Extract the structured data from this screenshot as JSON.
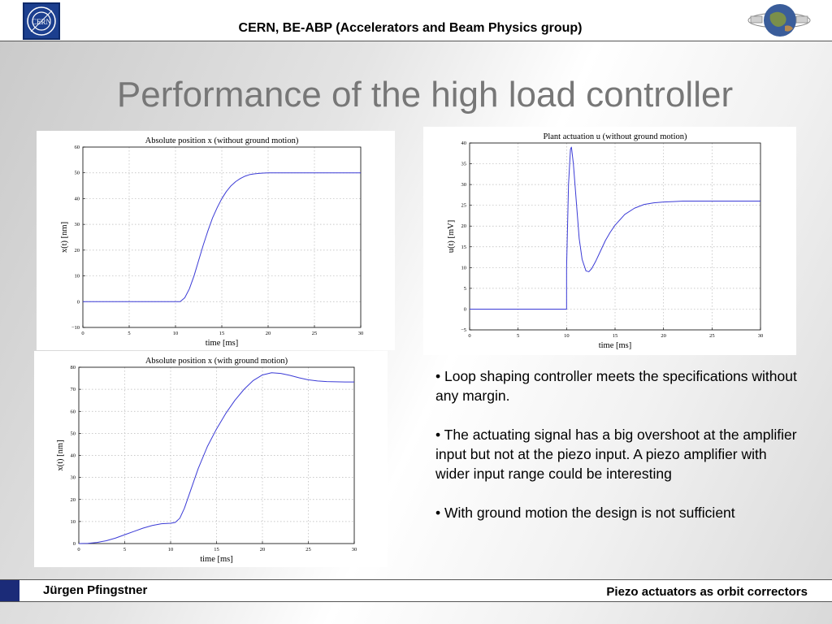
{
  "header": {
    "title": "CERN, BE-ABP (Accelerators and Beam Physics group)",
    "cern_logo_text": "CERN"
  },
  "slide": {
    "title": "Performance of the high load controller"
  },
  "bullets": [
    "• Loop shaping controller meets the specifications without any margin.",
    "• The actuating signal has a big overshoot at the amplifier input but not at the piezo input. A piezo amplifier with wider input range could be interesting",
    "• With ground motion the design is not sufficient"
  ],
  "footer": {
    "author": "Jürgen Pfingstner",
    "topic": "Piezo actuators as orbit correctors"
  },
  "chart_data": [
    {
      "type": "line",
      "title": "Absolute position x (without ground motion)",
      "xlabel": "time [ms]",
      "ylabel": "x(t) [nm]",
      "xlim": [
        0,
        30
      ],
      "ylim": [
        -10,
        60
      ],
      "xticks": [
        0,
        5,
        10,
        15,
        20,
        25,
        30
      ],
      "yticks": [
        -10,
        0,
        10,
        20,
        30,
        40,
        50,
        60
      ],
      "grid": true,
      "series": [
        {
          "color": "#3b3bd6",
          "x": [
            0,
            10.5,
            11.0,
            11.5,
            12.0,
            12.5,
            13.0,
            13.5,
            14.0,
            14.5,
            15.0,
            15.5,
            16.0,
            16.5,
            17.0,
            17.5,
            18.0,
            18.5,
            19.0,
            19.5,
            20.0,
            21.0,
            22.0,
            30.0
          ],
          "y": [
            0,
            0,
            1.5,
            5,
            10,
            16,
            22,
            27.5,
            32.5,
            36.5,
            40,
            42.8,
            45,
            46.6,
            47.8,
            48.7,
            49.3,
            49.6,
            49.8,
            49.9,
            50,
            50,
            50,
            50
          ]
        }
      ]
    },
    {
      "type": "line",
      "title": "Plant actuation u (without ground motion)",
      "xlabel": "time [ms]",
      "ylabel": "u(t) [mV]",
      "xlim": [
        0,
        30
      ],
      "ylim": [
        -5,
        40
      ],
      "xticks": [
        0,
        5,
        10,
        15,
        20,
        25,
        30
      ],
      "yticks": [
        -5,
        0,
        5,
        10,
        15,
        20,
        25,
        30,
        35,
        40
      ],
      "grid": true,
      "series": [
        {
          "color": "#3b3bd6",
          "x": [
            0,
            10.0,
            10.0,
            10.2,
            10.4,
            10.5,
            10.7,
            11.0,
            11.3,
            11.6,
            12.0,
            12.3,
            12.6,
            13.0,
            13.5,
            14.0,
            14.5,
            15.0,
            16.0,
            17.0,
            18.0,
            19.0,
            20.0,
            21.0,
            22.0,
            30.0
          ],
          "y": [
            0,
            0,
            10,
            30,
            38.5,
            39,
            35,
            26,
            17,
            12,
            9.2,
            9,
            9.8,
            11.5,
            14,
            16.5,
            18.5,
            20.2,
            22.8,
            24.3,
            25.2,
            25.6,
            25.8,
            25.9,
            26,
            26
          ]
        }
      ]
    },
    {
      "type": "line",
      "title": "Absolute position x (with ground motion)",
      "xlabel": "time [ms]",
      "ylabel": "x(t) [nm]",
      "xlim": [
        0,
        30
      ],
      "ylim": [
        0,
        80
      ],
      "xticks": [
        0,
        5,
        10,
        15,
        20,
        25,
        30
      ],
      "yticks": [
        0,
        10,
        20,
        30,
        40,
        50,
        60,
        70,
        80
      ],
      "grid": true,
      "series": [
        {
          "color": "#3b3bd6",
          "x": [
            0,
            1,
            2,
            3,
            4,
            5,
            6,
            7,
            8,
            9,
            10,
            10.5,
            11,
            11.5,
            12,
            12.5,
            13,
            14,
            15,
            16,
            17,
            18,
            19,
            20,
            21,
            22,
            23,
            24,
            25,
            26,
            27,
            28,
            29,
            30
          ],
          "y": [
            0,
            0.1,
            0.5,
            1.3,
            2.5,
            4,
            5.5,
            7,
            8.2,
            9,
            9.2,
            9.6,
            11.5,
            16,
            22,
            28,
            34,
            44,
            52,
            59,
            65,
            70,
            74,
            76.5,
            77.5,
            77.2,
            76.3,
            75.2,
            74.3,
            73.8,
            73.5,
            73.4,
            73.3,
            73.3
          ]
        }
      ]
    }
  ]
}
